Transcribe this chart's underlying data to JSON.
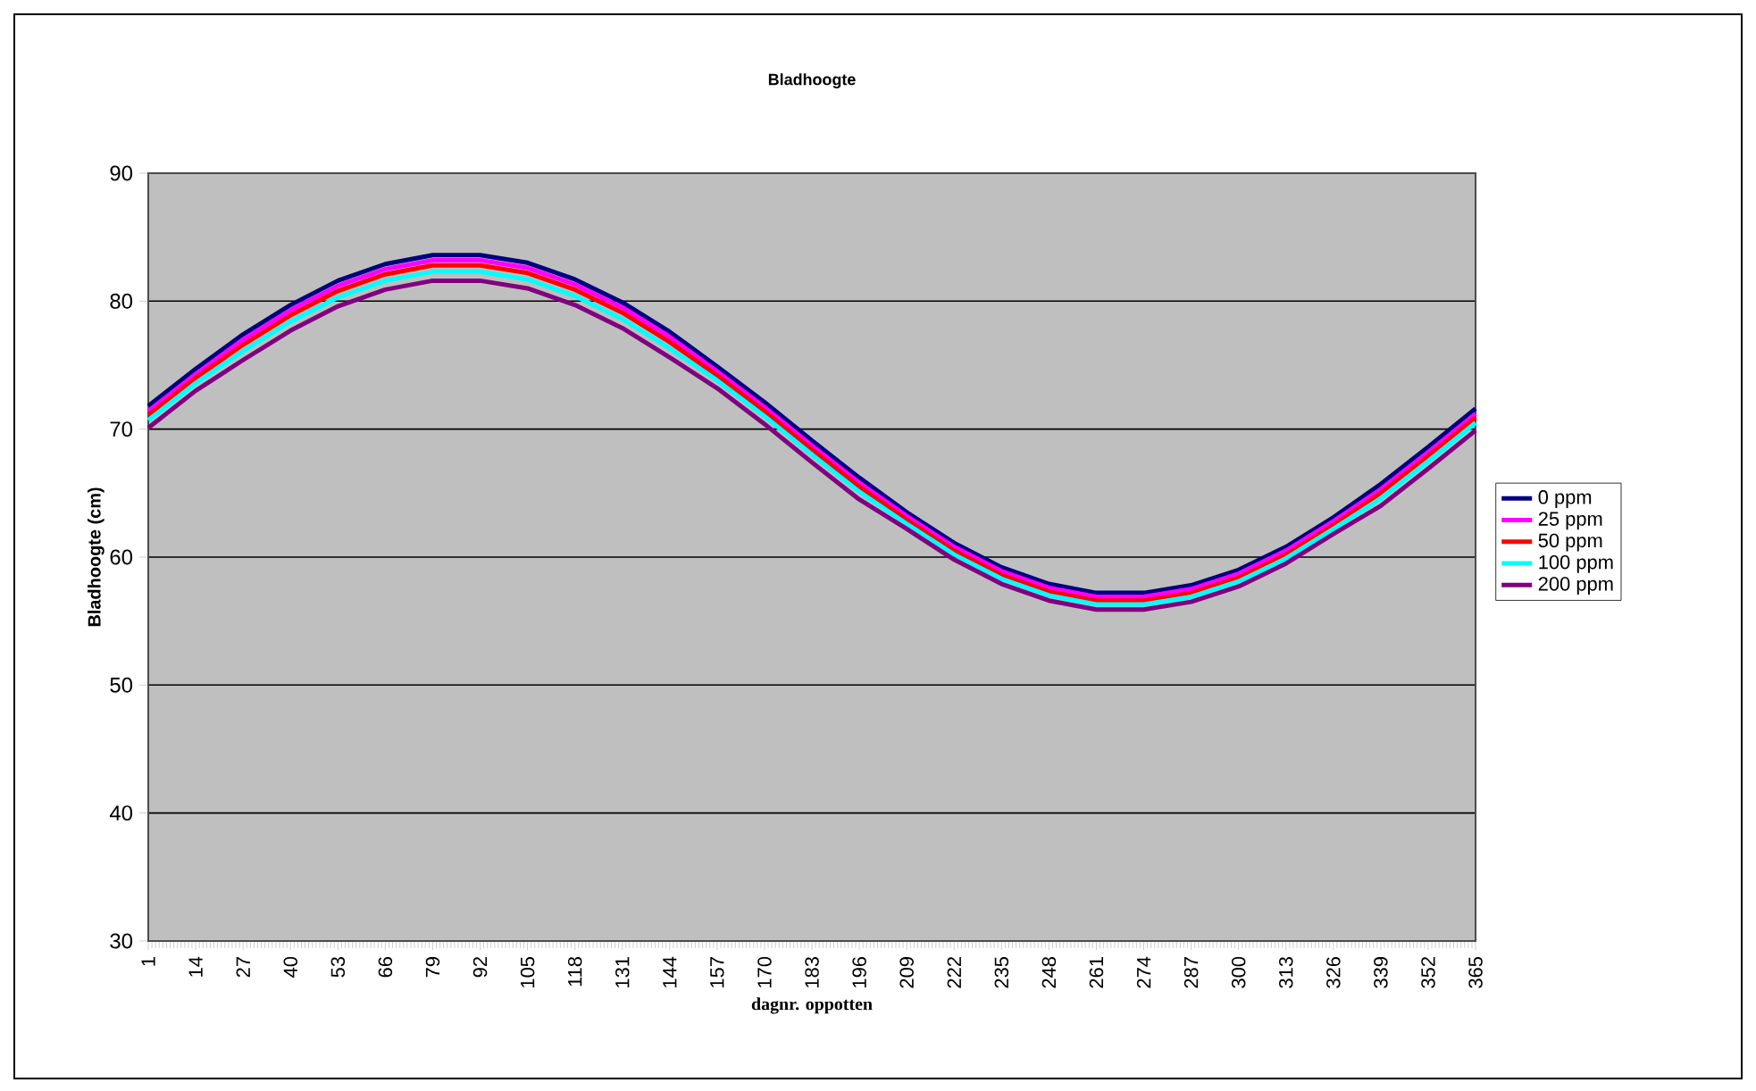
{
  "chart_data": {
    "type": "line",
    "title": "Bladhoogte",
    "xlabel": "dagnr. oppotten",
    "ylabel": "Bladhoogte (cm)",
    "x": [
      1,
      14,
      27,
      40,
      53,
      66,
      79,
      92,
      105,
      118,
      131,
      144,
      157,
      170,
      183,
      196,
      209,
      222,
      235,
      248,
      261,
      274,
      287,
      300,
      313,
      326,
      339,
      352,
      365
    ],
    "xlim": [
      1,
      365
    ],
    "xticks": [
      1,
      14,
      27,
      40,
      53,
      66,
      79,
      92,
      105,
      118,
      131,
      144,
      157,
      170,
      183,
      196,
      209,
      222,
      235,
      248,
      261,
      274,
      287,
      300,
      313,
      326,
      339,
      352,
      365
    ],
    "ylim": [
      30,
      90
    ],
    "yticks": [
      30,
      40,
      50,
      60,
      70,
      80,
      90
    ],
    "grid": "y",
    "legend": "right",
    "series": [
      {
        "name": "0 ppm",
        "color": "#000080",
        "values": [
          71.8,
          74.7,
          77.4,
          79.7,
          81.6,
          82.9,
          83.6,
          83.6,
          83.0,
          81.7,
          79.9,
          77.6,
          74.9,
          72.1,
          69.1,
          66.2,
          63.5,
          61.1,
          59.2,
          57.9,
          57.2,
          57.2,
          57.8,
          59.0,
          60.8,
          63.1,
          65.7,
          68.6,
          71.6
        ]
      },
      {
        "name": "25 ppm",
        "color": "#ff00ff",
        "values": [
          71.4,
          74.3,
          77.0,
          79.3,
          81.2,
          82.5,
          83.2,
          83.2,
          82.6,
          81.3,
          79.5,
          77.2,
          74.5,
          71.7,
          68.7,
          65.8,
          63.2,
          60.8,
          58.9,
          57.6,
          56.9,
          56.9,
          57.5,
          58.7,
          60.5,
          62.8,
          65.3,
          68.2,
          71.2
        ]
      },
      {
        "name": "50 ppm",
        "color": "#ff0000",
        "values": [
          71.1,
          74.0,
          76.6,
          78.9,
          80.8,
          82.1,
          82.8,
          82.8,
          82.2,
          80.9,
          79.1,
          76.8,
          74.2,
          71.4,
          68.4,
          65.5,
          62.9,
          60.5,
          58.6,
          57.3,
          56.6,
          56.6,
          57.2,
          58.4,
          60.2,
          62.5,
          65.0,
          67.9,
          70.9
        ]
      },
      {
        "name": "100 ppm",
        "color": "#00ffff",
        "values": [
          70.7,
          73.6,
          76.1,
          78.4,
          80.3,
          81.6,
          82.3,
          82.3,
          81.7,
          80.4,
          78.6,
          76.3,
          73.8,
          71.0,
          68.0,
          65.1,
          62.6,
          60.2,
          58.3,
          57.0,
          56.3,
          56.3,
          56.9,
          58.1,
          59.9,
          62.2,
          64.6,
          67.5,
          70.5
        ]
      },
      {
        "name": "200 ppm",
        "color": "#800080",
        "values": [
          70.1,
          73.0,
          75.4,
          77.7,
          79.6,
          80.9,
          81.6,
          81.6,
          81.0,
          79.7,
          77.9,
          75.6,
          73.2,
          70.4,
          67.4,
          64.5,
          62.2,
          59.8,
          57.9,
          56.6,
          55.9,
          55.9,
          56.5,
          57.7,
          59.5,
          61.8,
          64.0,
          66.9,
          69.9
        ]
      }
    ]
  }
}
